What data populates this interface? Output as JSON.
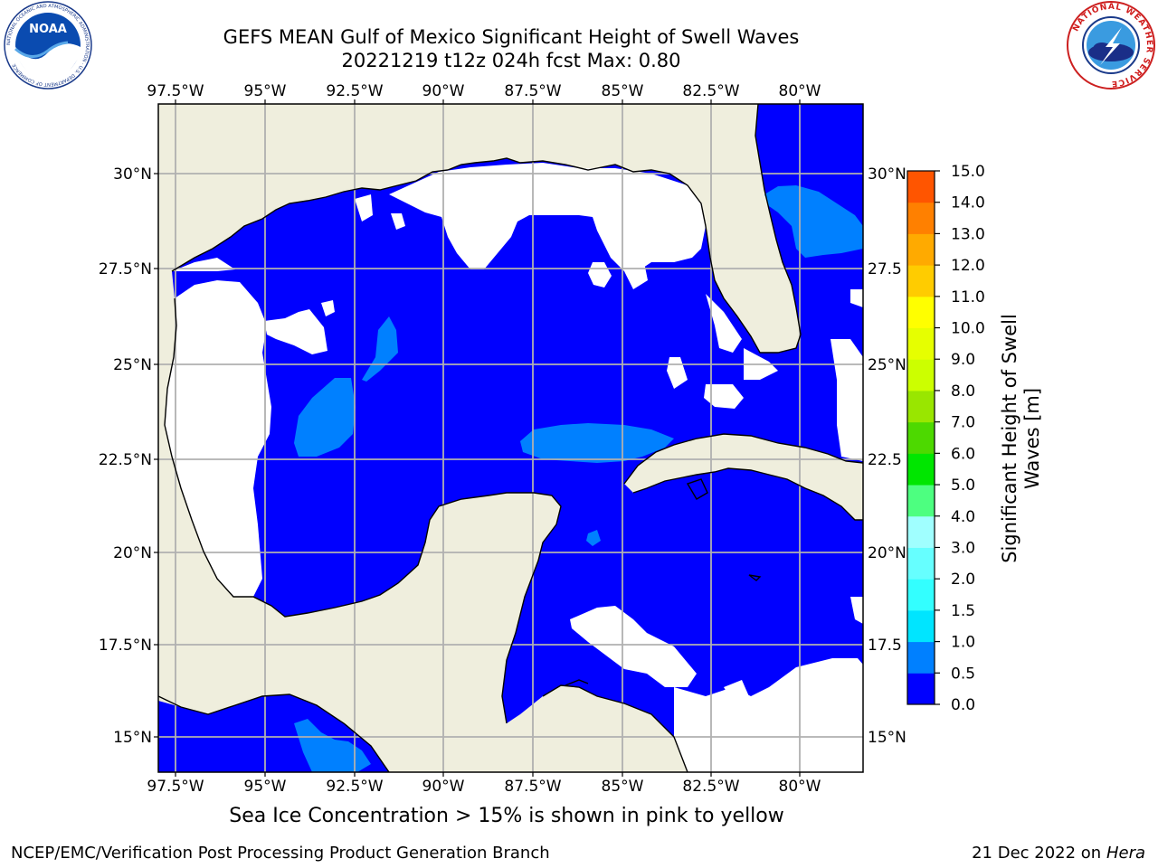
{
  "title": {
    "line1": "GEFS MEAN Gulf of Mexico Significant Height of Swell Waves",
    "line2": "20221219 t12z 024h fcst   Max: 0.80"
  },
  "map": {
    "lon_ticks": [
      "97.5°W",
      "95°W",
      "92.5°W",
      "90°W",
      "87.5°W",
      "85°W",
      "82.5°W",
      "80°W"
    ],
    "lat_ticks": [
      "30°N",
      "27.5°N",
      "25°N",
      "22.5°N",
      "20°N",
      "17.5°N",
      "15°N"
    ],
    "lat_ticks_right": [
      "30°N",
      "27.5",
      "25°N",
      "22.5",
      "20°N",
      "17.5",
      "15°N"
    ],
    "colors": {
      "land": "#efeedd",
      "swell_0_05": "#0000ff",
      "swell_05_10": "#0080ff",
      "no_data": "#ffffff",
      "grid": "#b0b0b0",
      "coast": "#000000"
    }
  },
  "colorbar": {
    "label_line1": "Significant Height of Swell",
    "label_line2": "Waves [m]",
    "ticks": [
      "0.0",
      "0.5",
      "1.0",
      "1.5",
      "2.0",
      "3.0",
      "4.0",
      "5.0",
      "6.0",
      "7.0",
      "8.0",
      "9.0",
      "10.0",
      "11.0",
      "12.0",
      "13.0",
      "14.0",
      "15.0"
    ],
    "colors": [
      "#0000ff",
      "#0080ff",
      "#00e5ff",
      "#33ffff",
      "#66ffff",
      "#a0ffff",
      "#4dff80",
      "#00e600",
      "#4dd900",
      "#99e600",
      "#ccff00",
      "#e6ff00",
      "#ffff00",
      "#ffcc00",
      "#ffaa00",
      "#ff8000",
      "#ff5500",
      "#ff2a00",
      "#ff0000"
    ]
  },
  "logos": {
    "noaa_text": "NOAA",
    "noaa_ring_text": "NATIONAL OCEANIC AND ATMOSPHERIC ADMINISTRATION · U.S. DEPARTMENT OF COMMERCE",
    "nws_ring_text": "NATIONAL WEATHER SERVICE"
  },
  "footnote": "Sea Ice Concentration > 15% is shown in pink to yellow",
  "credit_left": "NCEP/EMC/Verification Post Processing Product Generation Branch",
  "credit_right_date": "21 Dec 2022 on",
  "credit_right_host": "Hera"
}
